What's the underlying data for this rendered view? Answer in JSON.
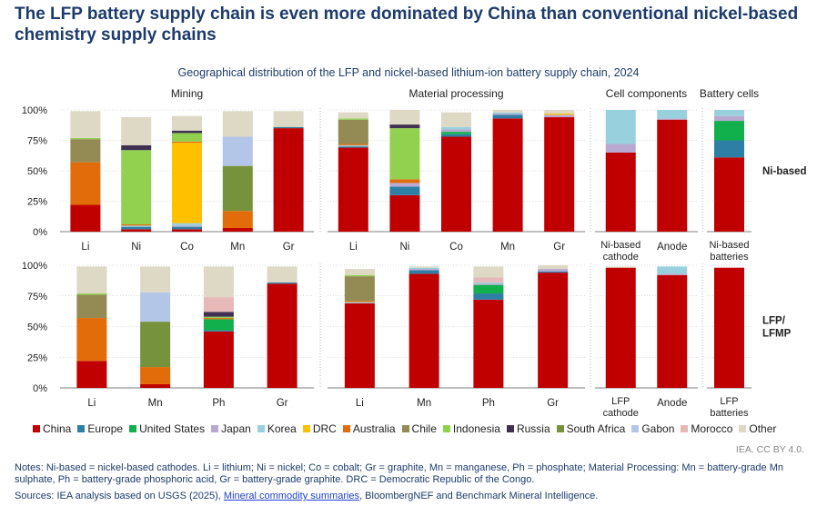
{
  "title": "The LFP battery supply chain is even more dominated by China than conventional nickel-based chemistry supply chains",
  "subtitle": "Geographical distribution of the LFP and nickel-based lithium-ion battery supply chain, 2024",
  "credit": "IEA. CC BY 4.0.",
  "notes": "Notes: Ni-based = nickel-based cathodes. Li = lithium; Ni = nickel; Co = cobalt; Gr = graphite, Mn = manganese, Ph = phosphate; Material Processing: Mn = battery-grade Mn sulphate, Ph = battery-grade phosphoric acid, Gr = battery-grade graphite. DRC = Democratic Republic of the Congo.",
  "sources": {
    "prefix": "Sources: IEA analysis based on USGS (2025), ",
    "link": "Mineral commodity summaries",
    "suffix": ", BloombergNEF and Benchmark Mineral Intelligence."
  },
  "colors": {
    "China": "#c00000",
    "Europe": "#2e7fa6",
    "United States": "#12b04c",
    "Japan": "#b9a9d1",
    "Korea": "#98d0de",
    "DRC": "#ffc000",
    "Australia": "#e36c0a",
    "Chile": "#948a54",
    "Indonesia": "#92d050",
    "Russia": "#403152",
    "South Africa": "#76923c",
    "Gabon": "#b4c6e7",
    "Morocco": "#e6b8b7",
    "Other": "#ddd9c4"
  },
  "chart_data": {
    "type": "bar",
    "stacked": true,
    "ylim": [
      0,
      100
    ],
    "yticks": [
      "0%",
      "25%",
      "50%",
      "75%",
      "100%"
    ],
    "legend_position": "bottom",
    "series_order": [
      "China",
      "Europe",
      "United States",
      "Japan",
      "Korea",
      "DRC",
      "Australia",
      "Chile",
      "Indonesia",
      "Russia",
      "South Africa",
      "Gabon",
      "Morocco",
      "Other"
    ],
    "legend": [
      "China",
      "Europe",
      "United States",
      "Japan",
      "Korea",
      "DRC",
      "Australia",
      "Chile",
      "Indonesia",
      "Russia",
      "South Africa",
      "Gabon",
      "Morocco",
      "Other"
    ],
    "rows": [
      {
        "label": "Ni-based",
        "label_lines": [
          "Ni-based"
        ]
      },
      {
        "label": "LFP/ LFMP",
        "label_lines": [
          "LFP/",
          "LFMP"
        ]
      }
    ],
    "panels": [
      {
        "title": "Mining",
        "row": 0,
        "categories": [
          "Li",
          "Ni",
          "Co",
          "Mn",
          "Gr"
        ],
        "bars": [
          {
            "China": 22,
            "Australia": 35,
            "Chile": 19,
            "Indonesia": 1,
            "Other": 22
          },
          {
            "China": 2,
            "Europe": 2,
            "Korea": 1,
            "Indonesia": 61,
            "Russia": 4,
            "Australia": 1,
            "Other": 23
          },
          {
            "China": 2,
            "Europe": 2,
            "Korea": 2,
            "DRC": 66,
            "Australia": 1,
            "Indonesia": 7,
            "Russia": 2,
            "Japan": 1,
            "Other": 12
          },
          {
            "China": 3,
            "Gabon": 24,
            "Australia": 14,
            "South Africa": 37,
            "Other": 21
          },
          {
            "China": 85,
            "Europe": 1,
            "Other": 13
          }
        ]
      },
      {
        "title": "Material processing",
        "row": 0,
        "categories": [
          "Li",
          "Ni",
          "Co",
          "Mn",
          "Gr"
        ],
        "bars": [
          {
            "China": 69,
            "Australia": 1,
            "Chile": 20,
            "Europe": 1,
            "Korea": 1,
            "Indonesia": 1,
            "Other": 5
          },
          {
            "China": 30,
            "Australia": 3,
            "Europe": 7,
            "Indonesia": 42,
            "Japan": 3,
            "Russia": 3,
            "Other": 12
          },
          {
            "China": 78,
            "Europe": 2,
            "United States": 2,
            "Korea": 2,
            "Japan": 2,
            "Other": 12
          },
          {
            "China": 93,
            "Europe": 3,
            "Korea": 1,
            "Japan": 1,
            "Other": 2
          },
          {
            "China": 94,
            "DRC": 1,
            "Japan": 2,
            "Other": 3
          }
        ]
      },
      {
        "title": "Cell components",
        "row": 0,
        "categories": [
          "Ni-based cathode",
          "Anode"
        ],
        "bars": [
          {
            "China": 65,
            "Japan": 7,
            "Korea": 28
          },
          {
            "China": 92,
            "Korea": 7,
            "Japan": 1
          }
        ]
      },
      {
        "title": "Battery cells",
        "row": 0,
        "categories": [
          "Ni-based batteries"
        ],
        "bars": [
          {
            "China": 61,
            "United States": 16,
            "Europe": 14,
            "Korea": 5,
            "Japan": 4
          }
        ]
      },
      {
        "title": "",
        "row": 1,
        "categories": [
          "Li",
          "Mn",
          "Ph",
          "Gr"
        ],
        "bars": [
          {
            "China": 22,
            "Australia": 35,
            "Chile": 19,
            "Indonesia": 1,
            "Other": 22
          },
          {
            "China": 3,
            "Australia": 14,
            "South Africa": 37,
            "Gabon": 24,
            "Other": 21
          },
          {
            "China": 46,
            "Australia": 1,
            "Europe": 1,
            "Russia": 4,
            "United States": 9,
            "Indonesia": 1,
            "Morocco": 12,
            "Other": 25
          },
          {
            "China": 85,
            "Europe": 1,
            "Other": 13
          }
        ]
      },
      {
        "title": "",
        "row": 1,
        "categories": [
          "Li",
          "Mn",
          "Ph",
          "Gr"
        ],
        "bars": [
          {
            "China": 69,
            "Australia": 1,
            "Chile": 20,
            "Korea": 1,
            "Indonesia": 1,
            "Other": 5
          },
          {
            "China": 93,
            "Europe": 3,
            "Japan": 1,
            "Korea": 1,
            "Other": 1
          },
          {
            "China": 72,
            "Europe": 5,
            "United States": 7,
            "Korea": 1,
            "Japan": 1,
            "Morocco": 4,
            "Other": 9
          },
          {
            "China": 94,
            "Europe": 1,
            "Japan": 2,
            "Other": 3
          }
        ]
      },
      {
        "title": "",
        "row": 1,
        "categories": [
          "LFP cathode",
          "Anode"
        ],
        "bars": [
          {
            "China": 98,
            "Other": 1
          },
          {
            "China": 92,
            "Korea": 6,
            "Japan": 1
          }
        ]
      },
      {
        "title": "",
        "row": 1,
        "categories": [
          "LFP batteries"
        ],
        "bars": [
          {
            "China": 98
          }
        ]
      }
    ]
  }
}
